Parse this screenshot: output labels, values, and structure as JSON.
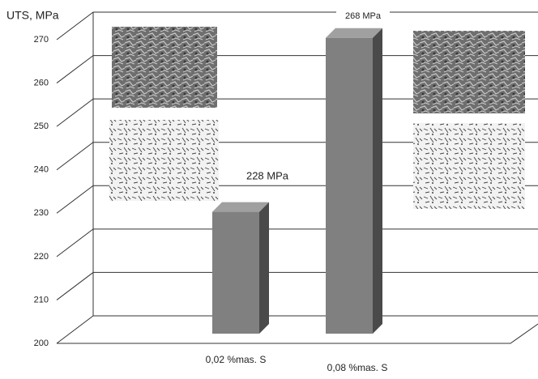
{
  "chart_data": {
    "type": "bar3d",
    "y_label": "UTS, MPa",
    "categories": [
      "0,02 %mas. S",
      "0,08 %mas. S"
    ],
    "values": [
      228,
      268
    ],
    "value_labels": [
      "228 MPa",
      "268 MPa"
    ],
    "color": "#808080",
    "ylim": [
      200,
      270
    ],
    "yticks": [
      200,
      210,
      220,
      230,
      240,
      250,
      260,
      270
    ],
    "grid": true
  }
}
